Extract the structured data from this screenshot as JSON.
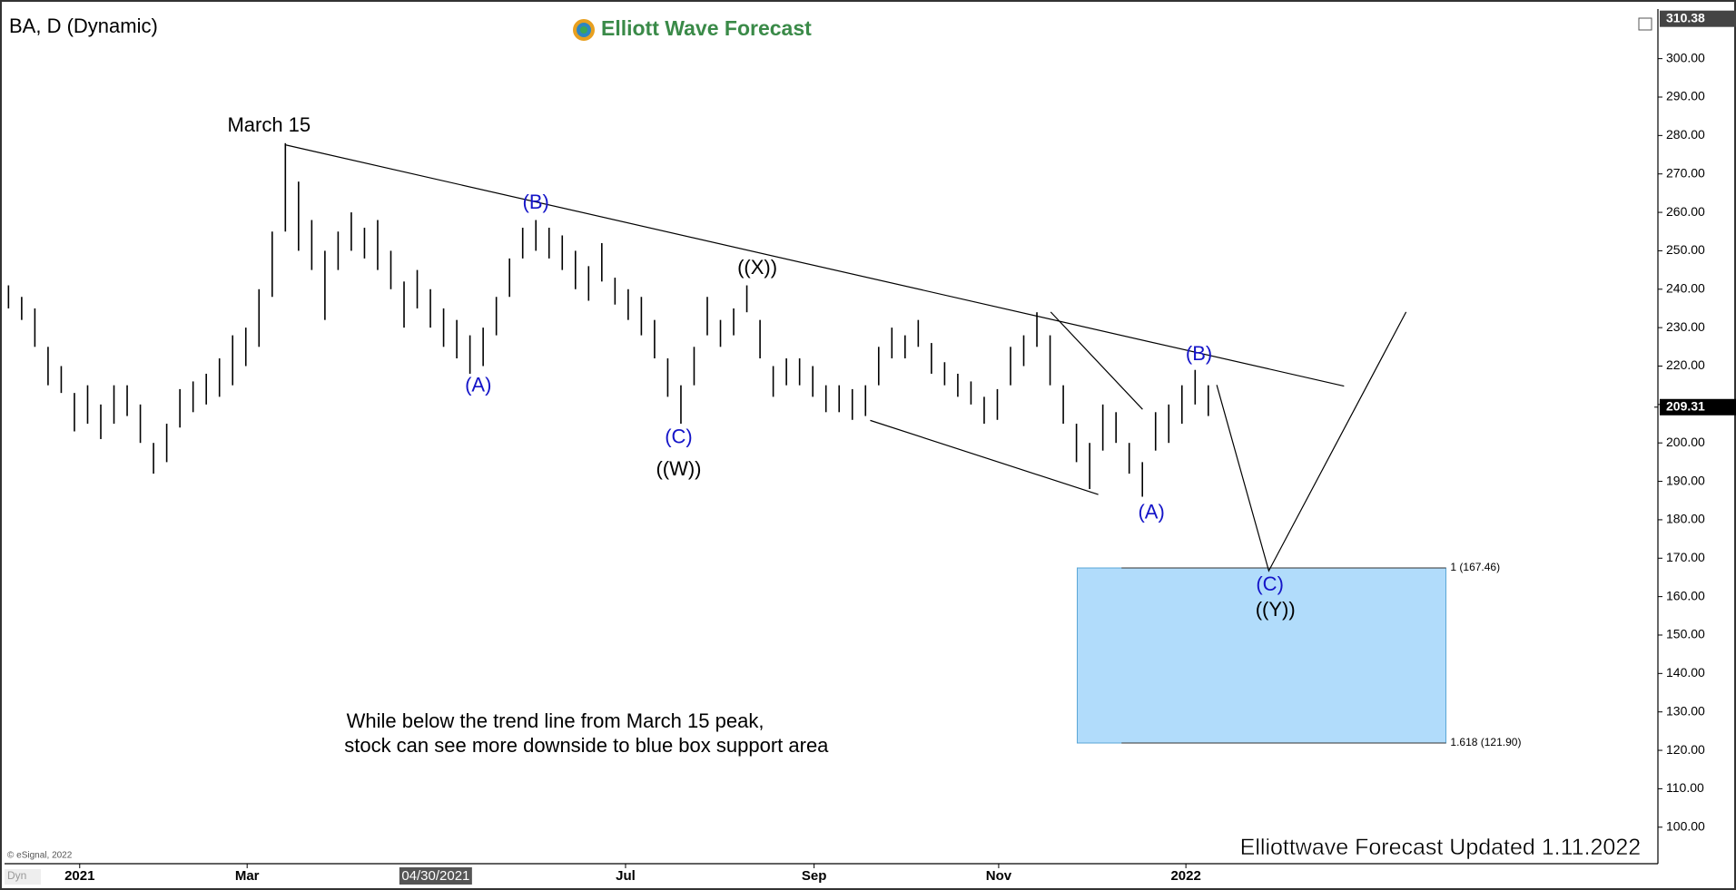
{
  "chart_data": {
    "type": "ohlc",
    "title": "BA, D (Dynamic)",
    "logo": "Elliott Wave Forecast",
    "x": [
      0,
      1,
      2,
      3,
      4,
      5,
      6,
      7,
      8,
      9,
      10,
      11,
      12,
      13,
      14,
      15,
      16,
      17,
      18,
      19,
      20,
      21,
      22,
      23,
      24,
      25,
      26,
      27,
      28,
      29,
      30,
      31,
      32,
      33,
      34,
      35,
      36,
      37,
      38,
      39,
      40,
      41,
      42,
      43,
      44,
      45,
      46,
      47,
      48,
      49,
      50,
      51,
      52,
      53,
      54,
      55,
      56,
      57,
      58,
      59,
      60,
      61,
      62,
      63,
      64,
      65,
      66,
      67,
      68,
      69,
      70,
      71,
      72,
      73,
      74,
      75,
      76,
      77,
      78,
      79,
      80,
      81,
      82,
      83,
      84,
      85,
      86,
      87,
      88,
      89,
      90,
      91
    ],
    "high": [
      241,
      238,
      235,
      225,
      220,
      213,
      215,
      210,
      215,
      215,
      210,
      200,
      205,
      214,
      216,
      218,
      222,
      228,
      230,
      240,
      255,
      278,
      268,
      258,
      250,
      255,
      260,
      256,
      258,
      250,
      242,
      245,
      240,
      235,
      232,
      228,
      230,
      238,
      248,
      256,
      258,
      256,
      254,
      250,
      246,
      252,
      243,
      240,
      238,
      232,
      222,
      215,
      225,
      238,
      232,
      235,
      241,
      232,
      220,
      222,
      222,
      220,
      215,
      215,
      214,
      215,
      225,
      230,
      228,
      232,
      226,
      221,
      218,
      216,
      212,
      214,
      225,
      228,
      234,
      228,
      215,
      205,
      200,
      210,
      208,
      200,
      195,
      208,
      210,
      215,
      219,
      215
    ],
    "low": [
      235,
      232,
      225,
      215,
      213,
      203,
      205,
      201,
      205,
      207,
      200,
      192,
      195,
      204,
      208,
      210,
      212,
      215,
      220,
      225,
      238,
      255,
      250,
      245,
      232,
      245,
      250,
      248,
      245,
      240,
      230,
      235,
      230,
      225,
      222,
      218,
      220,
      228,
      238,
      248,
      250,
      248,
      245,
      240,
      237,
      242,
      236,
      232,
      228,
      222,
      212,
      205,
      215,
      228,
      225,
      228,
      234,
      222,
      212,
      215,
      215,
      212,
      208,
      208,
      206,
      207,
      215,
      222,
      222,
      225,
      218,
      215,
      212,
      210,
      205,
      206,
      215,
      220,
      225,
      215,
      205,
      195,
      188,
      198,
      200,
      192,
      186,
      198,
      200,
      205,
      210,
      207
    ],
    "color": "#000000",
    "xlim": [
      -0.3,
      125.1
    ],
    "ylim": [
      90.5,
      312.9
    ],
    "xticks": [
      {
        "value": 5.4,
        "label": "2021"
      },
      {
        "value": 18.1,
        "label": "Mar"
      },
      {
        "value": 46.8,
        "label": "Jul"
      },
      {
        "value": 61.1,
        "label": "Sep"
      },
      {
        "value": 75.1,
        "label": "Nov"
      },
      {
        "value": 89.3,
        "label": "2022"
      }
    ],
    "cursor_label": {
      "value": 32.4,
      "label": "04/30/2021"
    },
    "yticks": [
      {
        "value": 100,
        "label": "100.00"
      },
      {
        "value": 110,
        "label": "110.00"
      },
      {
        "value": 120,
        "label": "120.00"
      },
      {
        "value": 130,
        "label": "130.00"
      },
      {
        "value": 140,
        "label": "140.00"
      },
      {
        "value": 150,
        "label": "150.00"
      },
      {
        "value": 160,
        "label": "160.00"
      },
      {
        "value": 170,
        "label": "170.00"
      },
      {
        "value": 180,
        "label": "180.00"
      },
      {
        "value": 190,
        "label": "190.00"
      },
      {
        "value": 200,
        "label": "200.00"
      },
      {
        "value": 210,
        "label": "210.00"
      },
      {
        "value": 220,
        "label": "220.00"
      },
      {
        "value": 230,
        "label": "230.00"
      },
      {
        "value": 240,
        "label": "240.00"
      },
      {
        "value": 250,
        "label": "250.00"
      },
      {
        "value": 260,
        "label": "260.00"
      },
      {
        "value": 270,
        "label": "270.00"
      },
      {
        "value": 280,
        "label": "280.00"
      },
      {
        "value": 290,
        "label": "290.00"
      },
      {
        "value": 300,
        "label": "300.00"
      }
    ],
    "axis_top_price": 310.38,
    "last_price": 209.31,
    "fib_levels": [
      {
        "value": 167.46,
        "label": "1 (167.46)"
      },
      {
        "value": 121.9,
        "label": "1.618 (121.90)"
      }
    ],
    "annotations": [
      "March 15",
      "(B)",
      "(A)",
      "(C)",
      "((W))",
      "((X))",
      "(B)",
      "(A)",
      "(C)",
      "((Y))"
    ],
    "note": [
      "While below the trend line from March 15 peak,",
      "stock can see more downside to blue box support area"
    ],
    "footer": "Elliottwave Forecast Updated 1.11.2022",
    "copyright": "© eSignal, 2022",
    "corner": "Dyn"
  }
}
